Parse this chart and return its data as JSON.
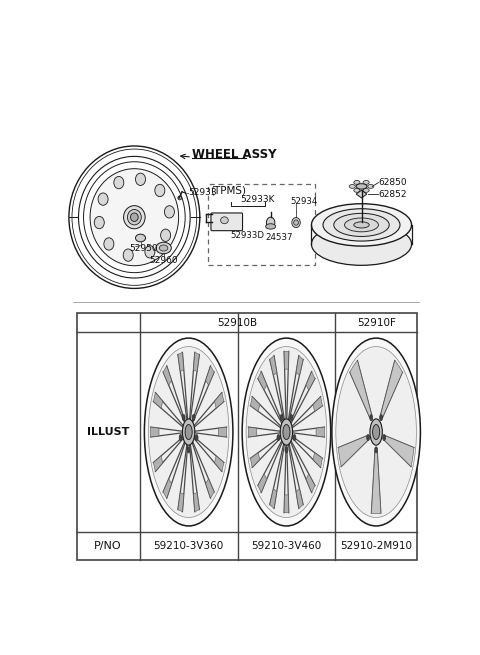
{
  "bg_color": "#ffffff",
  "wheel_assy_label": "WHEEL ASSY",
  "tpms_label": "(TPMS)",
  "label_52933": "52933",
  "label_52950": "52950",
  "label_52960": "52960",
  "label_52933K": "52933K",
  "label_52933D": "52933D",
  "label_24537": "24537",
  "label_52934": "52934",
  "label_62850": "62850",
  "label_62852": "62852",
  "col_header_B": "52910B",
  "col_header_F": "52910F",
  "row1_label": "ILLUST",
  "row2_label": "P/NO",
  "part_numbers": [
    "59210-3V360",
    "59210-3V460",
    "52910-2M910"
  ],
  "line_color": "#1a1a1a",
  "text_color": "#111111",
  "table_border_color": "#444444",
  "figsize": [
    4.8,
    6.55
  ],
  "dpi": 100
}
